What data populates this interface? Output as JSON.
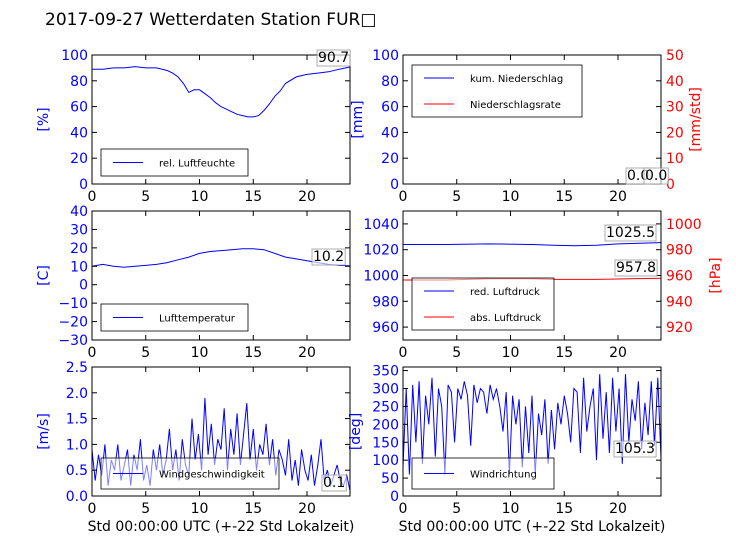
{
  "title": "2017-09-27 Wetterdaten Station FUR□",
  "colors": {
    "primary": "#0000ff",
    "secondary": "#ff0000"
  },
  "chart_data": [
    {
      "type": "line",
      "ylabel": "[%]",
      "ylim": [
        0,
        100
      ],
      "yticks": [
        "0",
        "20",
        "40",
        "60",
        "80",
        "100"
      ],
      "xlim": [
        0,
        24
      ],
      "xticks": [
        "0",
        "5",
        "10",
        "15",
        "20"
      ],
      "legend": "lower-left",
      "last_value": "90.7",
      "series": [
        {
          "name": "rel. Luftfeuchte",
          "axis": "left",
          "color": "#0000ff",
          "x": [
            0,
            1,
            2,
            3,
            4,
            5,
            6,
            7,
            7.5,
            8,
            8.5,
            9,
            9.5,
            10,
            10.5,
            11,
            11.5,
            12,
            12.5,
            13,
            13.5,
            14,
            14.5,
            15,
            15.5,
            16,
            16.5,
            17,
            17.5,
            18,
            19,
            20,
            21,
            22,
            23,
            24
          ],
          "y": [
            89,
            89,
            90,
            90,
            91,
            90,
            90,
            88,
            86,
            83,
            78,
            71,
            73,
            73,
            70,
            67,
            63,
            60,
            58,
            56,
            54,
            53,
            52,
            52,
            53,
            57,
            62,
            68,
            72,
            78,
            83,
            85,
            86,
            87,
            89,
            90.7
          ]
        }
      ]
    },
    {
      "type": "line",
      "ylabel": "[mm]",
      "ylim": [
        0,
        100
      ],
      "yticks": [
        "0",
        "20",
        "40",
        "60",
        "80",
        "100"
      ],
      "ylabel_right": "[mm/std]",
      "ylim_right": [
        0,
        50
      ],
      "yticks_right": [
        "0",
        "10",
        "20",
        "30",
        "40",
        "50"
      ],
      "xlim": [
        0,
        24
      ],
      "xticks": [
        "0",
        "5",
        "10",
        "15",
        "20"
      ],
      "legend": "upper-left",
      "last_value": "0.0",
      "last_value_2": "0.0",
      "series": [
        {
          "name": "kum. Niederschlag",
          "axis": "left",
          "color": "#0000ff",
          "x": [
            0,
            24
          ],
          "y": [
            0,
            0
          ]
        },
        {
          "name": "Niederschlagsrate",
          "axis": "right",
          "color": "#ff0000",
          "x": [
            0,
            24
          ],
          "y": [
            0,
            0
          ]
        }
      ]
    },
    {
      "type": "line",
      "ylabel": "[C]",
      "ylim": [
        -30,
        40
      ],
      "yticks": [
        "−30",
        "−20",
        "−10",
        "0",
        "10",
        "20",
        "30",
        "40"
      ],
      "xlim": [
        0,
        24
      ],
      "xticks": [
        "0",
        "5",
        "10",
        "15",
        "20"
      ],
      "legend": "lower-left",
      "last_value": "10.2",
      "series": [
        {
          "name": "Lufttemperatur",
          "axis": "left",
          "color": "#0000ff",
          "x": [
            0,
            1,
            2,
            3,
            4,
            5,
            6,
            7,
            8,
            9,
            10,
            11,
            12,
            13,
            14,
            15,
            16,
            17,
            18,
            19,
            20,
            21,
            22,
            23,
            24
          ],
          "y": [
            10,
            11,
            10,
            9.5,
            10,
            10.5,
            11,
            12,
            13.5,
            15,
            17,
            18,
            18.5,
            19,
            19.5,
            19.5,
            19,
            17,
            15,
            14,
            13,
            12,
            11,
            10.5,
            10.2
          ]
        }
      ]
    },
    {
      "type": "line",
      "ylim": [
        950,
        1050
      ],
      "yticks": [
        "960",
        "980",
        "1000",
        "1020",
        "1040"
      ],
      "ylabel_right": "[hPa]",
      "ylim_right": [
        910,
        1010
      ],
      "yticks_right": [
        "920",
        "940",
        "960",
        "980",
        "1000"
      ],
      "xlim": [
        0,
        24
      ],
      "xticks": [
        "0",
        "5",
        "10",
        "15",
        "20"
      ],
      "legend": "lower-left",
      "last_value": "1025.5",
      "last_value_2": "957.8",
      "series": [
        {
          "name": "red. Luftdruck",
          "axis": "left",
          "color": "#0000ff",
          "x": [
            0,
            4,
            8,
            12,
            14,
            16,
            18,
            20,
            22,
            24
          ],
          "y": [
            1024,
            1024,
            1024.5,
            1024,
            1023.5,
            1023,
            1023.5,
            1024.5,
            1025,
            1025.5
          ]
        },
        {
          "name": "abs. Luftdruck",
          "axis": "right",
          "color": "#ff0000",
          "x": [
            0,
            4,
            8,
            12,
            14,
            16,
            18,
            20,
            22,
            24
          ],
          "y": [
            956.5,
            956.5,
            957.5,
            957.5,
            957,
            957,
            957,
            957.3,
            957.6,
            957.8
          ]
        }
      ]
    },
    {
      "type": "line",
      "ylabel": "[m/s]",
      "ylim": [
        0,
        2.5
      ],
      "yticks": [
        "0.0",
        "0.5",
        "1.0",
        "1.5",
        "2.0",
        "2.5"
      ],
      "xlim": [
        0,
        24
      ],
      "xticks": [
        "0",
        "5",
        "10",
        "15",
        "20"
      ],
      "xlabel": "Std 00:00:00 UTC (+-22 Std Lokalzeit)",
      "legend": "lower-left",
      "last_value": "0.1",
      "series": [
        {
          "name": "Windgeschwindigkeit",
          "axis": "left",
          "color": "#0000ff",
          "x": [
            0,
            0.3,
            0.6,
            0.9,
            1.2,
            1.5,
            1.8,
            2.1,
            2.4,
            2.7,
            3,
            3.3,
            3.6,
            3.9,
            4.2,
            4.5,
            4.8,
            5.1,
            5.4,
            5.7,
            6,
            6.3,
            6.6,
            6.9,
            7.2,
            7.5,
            7.8,
            8.1,
            8.4,
            8.7,
            9,
            9.3,
            9.6,
            9.9,
            10.2,
            10.5,
            10.8,
            11.1,
            11.4,
            11.7,
            12,
            12.3,
            12.6,
            12.9,
            13.2,
            13.5,
            13.8,
            14.1,
            14.4,
            14.7,
            15,
            15.3,
            15.6,
            15.9,
            16.2,
            16.5,
            16.8,
            17.1,
            17.4,
            17.7,
            18,
            18.3,
            18.6,
            18.9,
            19.2,
            19.5,
            19.8,
            20.1,
            20.4,
            20.7,
            21,
            21.3,
            21.6,
            21.9,
            22.2,
            22.5,
            22.8,
            23.1,
            23.4,
            23.7,
            24
          ],
          "y": [
            0.9,
            0.3,
            0.8,
            0.4,
            1.0,
            0.2,
            0.7,
            0.5,
            1.0,
            0.3,
            0.6,
            0.9,
            0.2,
            0.8,
            0.5,
            1.1,
            0.3,
            0.6,
            0.2,
            0.9,
            0.5,
            1.0,
            0.4,
            0.7,
            1.3,
            0.5,
            0.9,
            0.3,
            1.1,
            0.6,
            0.4,
            1.5,
            0.7,
            1.2,
            0.5,
            1.9,
            0.8,
            1.4,
            0.6,
            1.1,
            0.9,
            1.7,
            0.5,
            1.3,
            0.8,
            1.6,
            0.6,
            1.2,
            1.8,
            0.7,
            1.3,
            0.5,
            1.0,
            0.8,
            1.4,
            0.6,
            1.1,
            0.4,
            0.9,
            0.7,
            0.4,
            1.1,
            0.3,
            0.7,
            0.2,
            0.9,
            0.5,
            0.3,
            0.8,
            0.2,
            0.6,
            1.1,
            0.3,
            0.5,
            0.2,
            0.4,
            0.6,
            0.3,
            0.2,
            0.4,
            0.1
          ]
        }
      ]
    },
    {
      "type": "line",
      "ylabel": "[deg]",
      "ylim": [
        0,
        360
      ],
      "yticks": [
        "0",
        "50",
        "100",
        "150",
        "200",
        "250",
        "300",
        "350"
      ],
      "xlim": [
        0,
        24
      ],
      "xticks": [
        "0",
        "5",
        "10",
        "15",
        "20"
      ],
      "xlabel": "Std 00:00:00 UTC (+-22 Std Lokalzeit)",
      "legend": "lower-left",
      "last_value": "105.3",
      "series": [
        {
          "name": "Windrichtung",
          "axis": "left",
          "color": "#0000ff",
          "x": [
            0,
            0.3,
            0.6,
            0.9,
            1.2,
            1.5,
            1.8,
            2.1,
            2.4,
            2.7,
            3,
            3.3,
            3.6,
            3.9,
            4.2,
            4.5,
            4.8,
            5.1,
            5.4,
            5.7,
            6,
            6.3,
            6.6,
            6.9,
            7.2,
            7.5,
            7.8,
            8.1,
            8.4,
            8.7,
            9,
            9.3,
            9.6,
            9.9,
            10.2,
            10.5,
            10.8,
            11.1,
            11.4,
            11.7,
            12,
            12.3,
            12.6,
            12.9,
            13.2,
            13.5,
            13.8,
            14.1,
            14.4,
            14.7,
            15,
            15.3,
            15.6,
            15.9,
            16.2,
            16.5,
            16.8,
            17.1,
            17.4,
            17.7,
            18,
            18.3,
            18.6,
            18.9,
            19.2,
            19.5,
            19.8,
            20.1,
            20.4,
            20.7,
            21,
            21.3,
            21.6,
            21.9,
            22.2,
            22.5,
            22.8,
            23.1,
            23.4,
            23.7,
            24
          ],
          "y": [
            80,
            300,
            60,
            310,
            150,
            320,
            90,
            280,
            200,
            330,
            110,
            300,
            250,
            60,
            310,
            290,
            150,
            300,
            270,
            320,
            280,
            140,
            310,
            260,
            300,
            290,
            230,
            310,
            270,
            300,
            250,
            180,
            290,
            60,
            280,
            200,
            270,
            80,
            250,
            120,
            280,
            60,
            230,
            170,
            270,
            90,
            240,
            130,
            260,
            200,
            280,
            230,
            150,
            300,
            290,
            120,
            330,
            180,
            250,
            300,
            100,
            340,
            160,
            290,
            120,
            330,
            180,
            300,
            90,
            340,
            150,
            270,
            210,
            320,
            130,
            260,
            170,
            320,
            140,
            330,
            105
          ]
        }
      ]
    }
  ]
}
